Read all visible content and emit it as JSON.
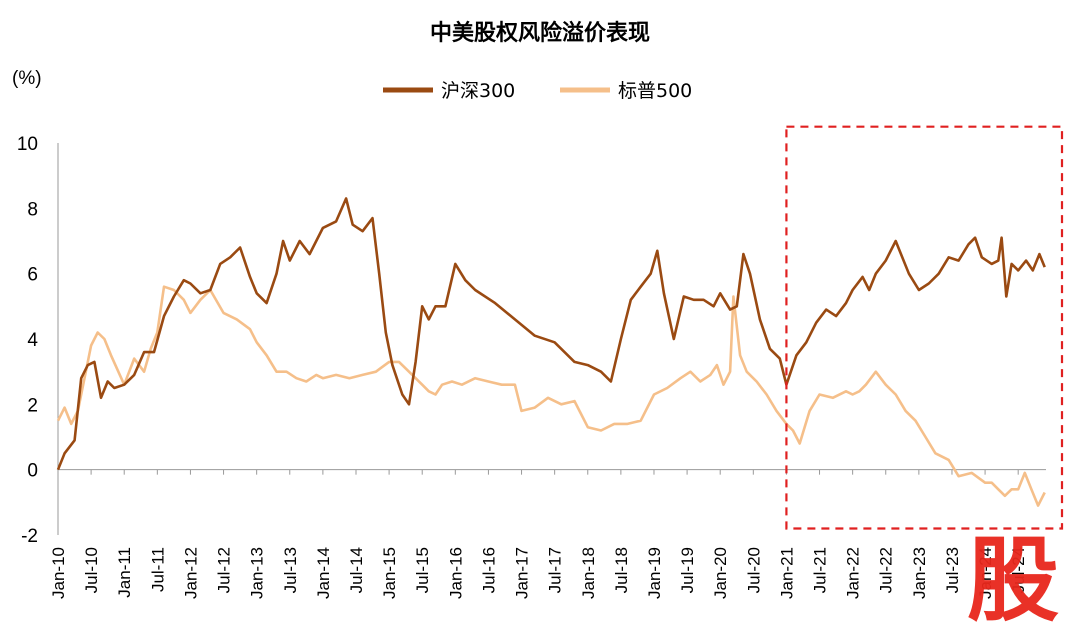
{
  "chart_data": {
    "type": "line",
    "title": "中美股权风险溢价表现",
    "ylabel": "(%)",
    "xlabel": "",
    "ylim": [
      -2,
      10
    ],
    "yticks": [
      -2,
      0,
      2,
      4,
      6,
      8,
      10
    ],
    "xlim": [
      2010.0,
      2024.92
    ],
    "xtick_labels": [
      "Jan-10",
      "Jul-10",
      "Jan-11",
      "Jul-11",
      "Jan-12",
      "Jul-12",
      "Jan-13",
      "Jul-13",
      "Jan-14",
      "Jul-14",
      "Jan-15",
      "Jul-15",
      "Jan-16",
      "Jul-16",
      "Jan-17",
      "Jul-17",
      "Jan-18",
      "Jul-18",
      "Jan-19",
      "Jul-19",
      "Jan-20",
      "Jul-20",
      "Jan-21",
      "Jul-21",
      "Jan-22",
      "Jul-22",
      "Jan-23",
      "Jul-23",
      "Jan-24",
      "Jul-24"
    ],
    "highlight": {
      "x_from": 2021.0,
      "x_to": 2024.92,
      "y_from": -1.8,
      "y_to": 10.5,
      "color": "#e02020"
    },
    "watermark": "股",
    "series": [
      {
        "name": "沪深300",
        "color": "#9a4a12",
        "x": [
          2010.0,
          2010.1,
          2010.25,
          2010.35,
          2010.45,
          2010.55,
          2010.65,
          2010.75,
          2010.85,
          2011.0,
          2011.15,
          2011.3,
          2011.45,
          2011.6,
          2011.75,
          2011.9,
          2012.0,
          2012.15,
          2012.3,
          2012.45,
          2012.6,
          2012.75,
          2012.9,
          2013.0,
          2013.15,
          2013.3,
          2013.4,
          2013.5,
          2013.65,
          2013.8,
          2014.0,
          2014.2,
          2014.35,
          2014.45,
          2014.6,
          2014.75,
          2014.85,
          2014.95,
          2015.05,
          2015.2,
          2015.3,
          2015.4,
          2015.5,
          2015.6,
          2015.7,
          2015.85,
          2016.0,
          2016.15,
          2016.3,
          2016.6,
          2016.9,
          2017.2,
          2017.5,
          2017.8,
          2018.0,
          2018.2,
          2018.35,
          2018.5,
          2018.65,
          2018.8,
          2018.95,
          2019.05,
          2019.15,
          2019.3,
          2019.45,
          2019.6,
          2019.75,
          2019.9,
          2020.0,
          2020.15,
          2020.25,
          2020.35,
          2020.45,
          2020.6,
          2020.75,
          2020.9,
          2021.0,
          2021.15,
          2021.3,
          2021.45,
          2021.6,
          2021.75,
          2021.9,
          2022.0,
          2022.15,
          2022.25,
          2022.35,
          2022.5,
          2022.65,
          2022.85,
          2023.0,
          2023.15,
          2023.3,
          2023.45,
          2023.6,
          2023.75,
          2023.85,
          2023.95,
          2024.1,
          2024.2,
          2024.25,
          2024.32,
          2024.4,
          2024.5,
          2024.62,
          2024.72,
          2024.82,
          2024.9
        ],
        "values": [
          0.0,
          0.5,
          0.9,
          2.8,
          3.2,
          3.3,
          2.2,
          2.7,
          2.5,
          2.6,
          2.9,
          3.6,
          3.6,
          4.7,
          5.3,
          5.8,
          5.7,
          5.4,
          5.5,
          6.3,
          6.5,
          6.8,
          5.9,
          5.4,
          5.1,
          6.0,
          7.0,
          6.4,
          7.0,
          6.6,
          7.4,
          7.6,
          8.3,
          7.5,
          7.3,
          7.7,
          6.0,
          4.2,
          3.2,
          2.3,
          2.0,
          3.3,
          5.0,
          4.6,
          5.0,
          5.0,
          6.3,
          5.8,
          5.5,
          5.1,
          4.6,
          4.1,
          3.9,
          3.3,
          3.2,
          3.0,
          2.7,
          4.0,
          5.2,
          5.6,
          6.0,
          6.7,
          5.4,
          4.0,
          5.3,
          5.2,
          5.2,
          5.0,
          5.4,
          4.9,
          5.0,
          6.6,
          6.0,
          4.6,
          3.7,
          3.4,
          2.6,
          3.5,
          3.9,
          4.5,
          4.9,
          4.7,
          5.1,
          5.5,
          5.9,
          5.5,
          6.0,
          6.4,
          7.0,
          6.0,
          5.5,
          5.7,
          6.0,
          6.5,
          6.4,
          6.9,
          7.1,
          6.5,
          6.3,
          6.4,
          7.1,
          5.3,
          6.3,
          6.1,
          6.4,
          6.1,
          6.6,
          6.2
        ]
      },
      {
        "name": "标普500",
        "color": "#f5bf8a",
        "x": [
          2010.0,
          2010.1,
          2010.2,
          2010.3,
          2010.4,
          2010.5,
          2010.6,
          2010.7,
          2010.8,
          2011.0,
          2011.15,
          2011.3,
          2011.4,
          2011.5,
          2011.6,
          2011.75,
          2011.9,
          2012.0,
          2012.15,
          2012.3,
          2012.5,
          2012.7,
          2012.9,
          2013.0,
          2013.15,
          2013.3,
          2013.45,
          2013.6,
          2013.75,
          2013.9,
          2014.0,
          2014.2,
          2014.4,
          2014.6,
          2014.8,
          2015.0,
          2015.15,
          2015.3,
          2015.4,
          2015.5,
          2015.6,
          2015.7,
          2015.8,
          2015.95,
          2016.1,
          2016.3,
          2016.5,
          2016.7,
          2016.9,
          2017.0,
          2017.2,
          2017.4,
          2017.6,
          2017.8,
          2018.0,
          2018.2,
          2018.4,
          2018.6,
          2018.8,
          2019.0,
          2019.2,
          2019.4,
          2019.55,
          2019.7,
          2019.85,
          2019.95,
          2020.05,
          2020.15,
          2020.2,
          2020.3,
          2020.4,
          2020.55,
          2020.7,
          2020.85,
          2021.0,
          2021.1,
          2021.2,
          2021.35,
          2021.5,
          2021.7,
          2021.9,
          2022.0,
          2022.1,
          2022.2,
          2022.35,
          2022.5,
          2022.65,
          2022.8,
          2022.95,
          2023.1,
          2023.25,
          2023.45,
          2023.6,
          2023.8,
          2024.0,
          2024.1,
          2024.2,
          2024.3,
          2024.4,
          2024.5,
          2024.6,
          2024.7,
          2024.8,
          2024.9
        ],
        "values": [
          1.5,
          1.9,
          1.4,
          1.8,
          2.8,
          3.8,
          4.2,
          4.0,
          3.5,
          2.6,
          3.4,
          3.0,
          3.7,
          4.2,
          5.6,
          5.5,
          5.2,
          4.8,
          5.2,
          5.5,
          4.8,
          4.6,
          4.3,
          3.9,
          3.5,
          3.0,
          3.0,
          2.8,
          2.7,
          2.9,
          2.8,
          2.9,
          2.8,
          2.9,
          3.0,
          3.3,
          3.3,
          3.0,
          2.8,
          2.6,
          2.4,
          2.3,
          2.6,
          2.7,
          2.6,
          2.8,
          2.7,
          2.6,
          2.6,
          1.8,
          1.9,
          2.2,
          2.0,
          2.1,
          1.3,
          1.2,
          1.4,
          1.4,
          1.5,
          2.3,
          2.5,
          2.8,
          3.0,
          2.7,
          2.9,
          3.2,
          2.6,
          3.0,
          5.3,
          3.5,
          3.0,
          2.7,
          2.3,
          1.8,
          1.4,
          1.2,
          0.8,
          1.8,
          2.3,
          2.2,
          2.4,
          2.3,
          2.4,
          2.6,
          3.0,
          2.6,
          2.3,
          1.8,
          1.5,
          1.0,
          0.5,
          0.3,
          -0.2,
          -0.1,
          -0.4,
          -0.4,
          -0.6,
          -0.8,
          -0.6,
          -0.6,
          -0.1,
          -0.6,
          -1.1,
          -0.7
        ]
      }
    ]
  }
}
